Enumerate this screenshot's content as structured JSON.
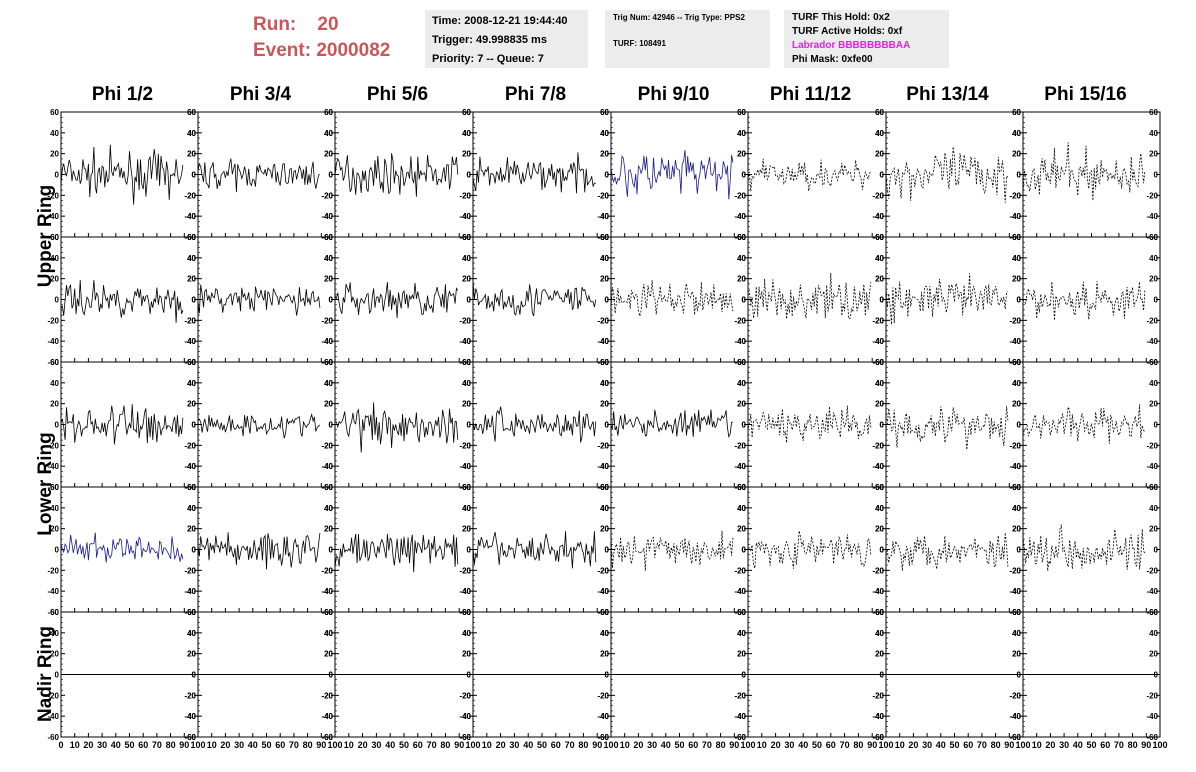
{
  "run_info": {
    "run_label": "Run:",
    "run_value": "20",
    "event_label": "Event:",
    "event_value": "2000082"
  },
  "info_time": {
    "time": "Time: 2008-12-21 19:44:40",
    "trigger": "Trigger: 49.998835 ms",
    "priority": "Priority: 7 -- Queue: 7"
  },
  "info_trig": {
    "trig": "Trig Num: 42946 -- Trig Type: PPS2",
    "turf": "TURF: 108491"
  },
  "info_turf": {
    "this_hold": "TURF This Hold: 0x2",
    "active_holds": "TURF Active Holds: 0xf",
    "labrador": "Labrador BBBBBBBBAA",
    "phi_mask": "Phi Mask: 0xfe00"
  },
  "colors": {
    "solid": "#000000",
    "highlight": "#1c1c8c",
    "labrador": "#e61ee6",
    "run": "#c9575a",
    "panel_bg": "#ececec"
  },
  "columns": [
    "Phi 1/2",
    "Phi 3/4",
    "Phi 5/6",
    "Phi 7/8",
    "Phi 9/10",
    "Phi 11/12",
    "Phi 13/14",
    "Phi 15/16"
  ],
  "rows": [
    "Upper Ring",
    "Lower Ring",
    "Nadir Ring"
  ],
  "chart_data": {
    "type": "line",
    "grid": "8 columns x 5 rows of waveform panels",
    "x_ticks": [
      0,
      10,
      20,
      30,
      40,
      50,
      60,
      70,
      80,
      90,
      100
    ],
    "y_ticks": [
      -60,
      -40,
      -20,
      0,
      20,
      40,
      60
    ],
    "xlim": [
      0,
      100
    ],
    "ylim": [
      -60,
      60
    ],
    "x_samples": 90,
    "series_style": [
      [
        "solid",
        "solid",
        "solid",
        "solid",
        "blue",
        "dashed",
        "dashed",
        "dashed"
      ],
      [
        "solid",
        "solid",
        "solid",
        "solid",
        "dashed",
        "dashed",
        "dashed",
        "dashed"
      ],
      [
        "solid",
        "solid",
        "solid",
        "solid",
        "solid",
        "dashed",
        "dashed",
        "dashed"
      ],
      [
        "blue",
        "solid",
        "solid",
        "solid",
        "dashed",
        "dashed",
        "dashed",
        "dashed"
      ],
      [
        "flat",
        "flat",
        "flat",
        "flat",
        "flat",
        "flat",
        "flat",
        "flat"
      ]
    ],
    "series_amplitude": [
      [
        18,
        12,
        16,
        14,
        20,
        12,
        22,
        20
      ],
      [
        15,
        12,
        15,
        15,
        15,
        18,
        18,
        16
      ],
      [
        18,
        10,
        18,
        14,
        12,
        14,
        18,
        15
      ],
      [
        12,
        16,
        15,
        14,
        14,
        14,
        16,
        18
      ],
      [
        0,
        0,
        0,
        0,
        0,
        0,
        0,
        0
      ]
    ]
  }
}
